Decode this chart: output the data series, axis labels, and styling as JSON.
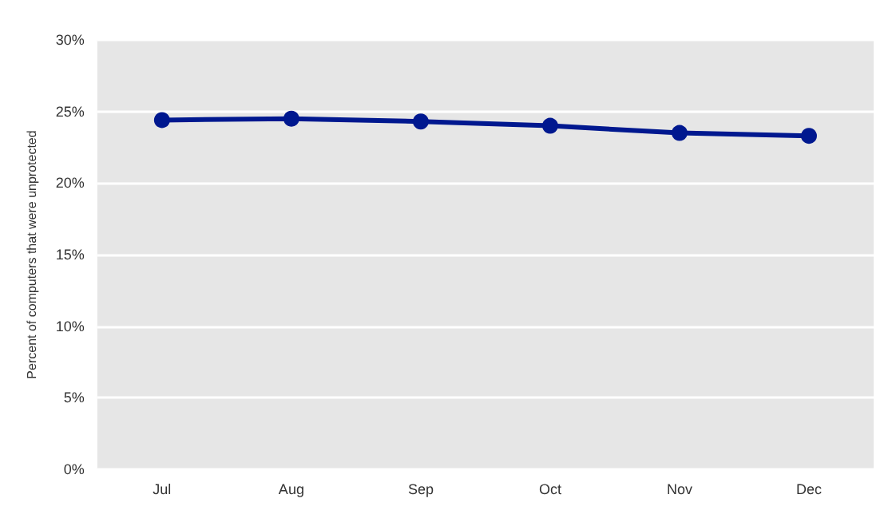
{
  "chart_data": {
    "type": "line",
    "ylabel": "Percent of computers that were unprotected",
    "categories": [
      "Jul",
      "Aug",
      "Sep",
      "Oct",
      "Nov",
      "Dec"
    ],
    "series": [
      {
        "color": "#00188f",
        "values": [
          24.4,
          24.5,
          24.3,
          24.0,
          23.5,
          23.3
        ]
      }
    ],
    "ylim": [
      0,
      30
    ],
    "yticks": [
      {
        "value": 0,
        "label": "0%"
      },
      {
        "value": 5,
        "label": "5%"
      },
      {
        "value": 10,
        "label": "10%"
      },
      {
        "value": 15,
        "label": "15%"
      },
      {
        "value": 20,
        "label": "20%"
      },
      {
        "value": 25,
        "label": "25%"
      },
      {
        "value": 30,
        "label": "30%"
      }
    ],
    "grid": "y",
    "marker": "circle",
    "line_style": "solid"
  }
}
